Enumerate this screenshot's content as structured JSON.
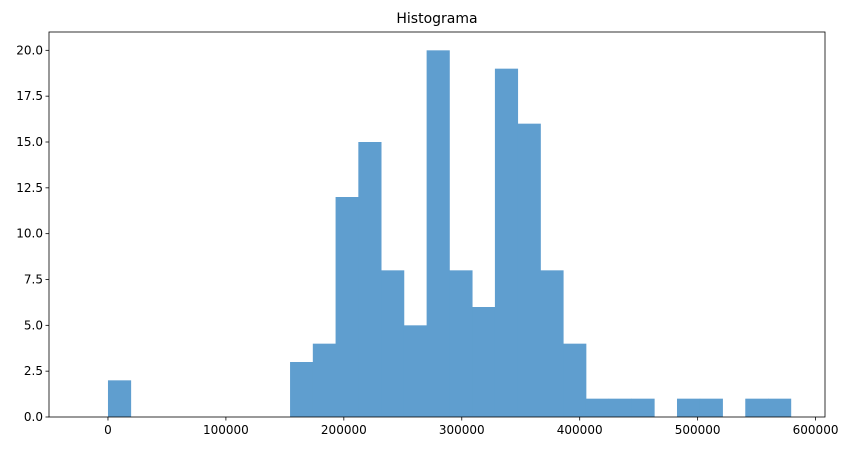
{
  "chart_data": {
    "type": "bar",
    "title": "Histograma",
    "xlabel": "",
    "ylabel": "",
    "xlim": [
      -50000,
      608000
    ],
    "ylim": [
      0,
      21
    ],
    "bar_color": "#5f9ecf",
    "bins": [
      {
        "x0": 0,
        "x1": 19300,
        "count": 2
      },
      {
        "x0": 19300,
        "x1": 38600,
        "count": 0
      },
      {
        "x0": 38600,
        "x1": 57900,
        "count": 0
      },
      {
        "x0": 57900,
        "x1": 77200,
        "count": 0
      },
      {
        "x0": 77200,
        "x1": 96500,
        "count": 0
      },
      {
        "x0": 96500,
        "x1": 115800,
        "count": 0
      },
      {
        "x0": 115800,
        "x1": 135100,
        "count": 0
      },
      {
        "x0": 135100,
        "x1": 154400,
        "count": 0
      },
      {
        "x0": 154400,
        "x1": 173700,
        "count": 3
      },
      {
        "x0": 173700,
        "x1": 193000,
        "count": 4
      },
      {
        "x0": 193000,
        "x1": 212300,
        "count": 12
      },
      {
        "x0": 212300,
        "x1": 231600,
        "count": 15
      },
      {
        "x0": 231600,
        "x1": 250900,
        "count": 8
      },
      {
        "x0": 250900,
        "x1": 270200,
        "count": 5
      },
      {
        "x0": 270200,
        "x1": 289500,
        "count": 20
      },
      {
        "x0": 289500,
        "x1": 308800,
        "count": 8
      },
      {
        "x0": 308800,
        "x1": 328100,
        "count": 6
      },
      {
        "x0": 328100,
        "x1": 347400,
        "count": 19
      },
      {
        "x0": 347400,
        "x1": 366700,
        "count": 16
      },
      {
        "x0": 366700,
        "x1": 386000,
        "count": 8
      },
      {
        "x0": 386000,
        "x1": 405300,
        "count": 4
      },
      {
        "x0": 405300,
        "x1": 424600,
        "count": 1
      },
      {
        "x0": 424600,
        "x1": 443900,
        "count": 1
      },
      {
        "x0": 443900,
        "x1": 463200,
        "count": 1
      },
      {
        "x0": 463200,
        "x1": 482500,
        "count": 0
      },
      {
        "x0": 482500,
        "x1": 501800,
        "count": 1
      },
      {
        "x0": 501800,
        "x1": 521100,
        "count": 1
      },
      {
        "x0": 521100,
        "x1": 540400,
        "count": 0
      },
      {
        "x0": 540400,
        "x1": 559700,
        "count": 1
      },
      {
        "x0": 559700,
        "x1": 579000,
        "count": 1
      }
    ],
    "x_ticks": [
      {
        "value": 0,
        "label": "0"
      },
      {
        "value": 100000,
        "label": "100000"
      },
      {
        "value": 200000,
        "label": "200000"
      },
      {
        "value": 300000,
        "label": "300000"
      },
      {
        "value": 400000,
        "label": "400000"
      },
      {
        "value": 500000,
        "label": "500000"
      },
      {
        "value": 600000,
        "label": "600000"
      }
    ],
    "y_ticks": [
      {
        "value": 0,
        "label": "0.0"
      },
      {
        "value": 2.5,
        "label": "2.5"
      },
      {
        "value": 5,
        "label": "5.0"
      },
      {
        "value": 7.5,
        "label": "7.5"
      },
      {
        "value": 10,
        "label": "10.0"
      },
      {
        "value": 12.5,
        "label": "12.5"
      },
      {
        "value": 15,
        "label": "15.0"
      },
      {
        "value": 17.5,
        "label": "17.5"
      },
      {
        "value": 20,
        "label": "20.0"
      }
    ],
    "grid": false,
    "legend": "none"
  }
}
